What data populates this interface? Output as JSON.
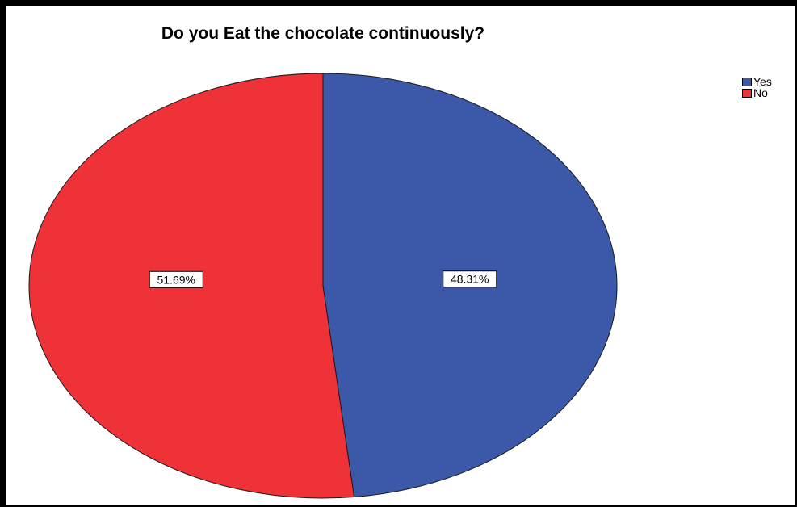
{
  "chart_data": {
    "type": "pie",
    "title": "Do you Eat the chocolate continuously?",
    "slices": [
      {
        "label": "Yes",
        "value": 48.31,
        "display": "48.31%",
        "color": "#3c58a8"
      },
      {
        "label": "No",
        "value": 51.69,
        "display": "51.69%",
        "color": "#ef3238"
      }
    ],
    "legend_position": "top-right"
  }
}
